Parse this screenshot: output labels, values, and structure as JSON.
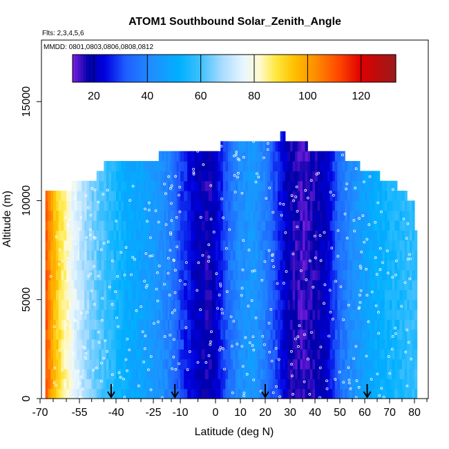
{
  "chart_data": {
    "type": "heatmap",
    "title": "ATOM1 Southbound Solar_Zenith_Angle",
    "subtitle_flights": "Flts: 2,3,4,5,6",
    "subtitle_dates": "MMDD: 0801,0803,0806,0808,0812",
    "xlabel": "Latitude (deg N)",
    "ylabel": "Altitude (m)",
    "xlim": [
      -70,
      85
    ],
    "ylim": [
      0,
      17500
    ],
    "x_ticks": [
      -70,
      -55,
      -40,
      -25,
      -10,
      0,
      10,
      20,
      30,
      40,
      50,
      60,
      70,
      80
    ],
    "x_tick_labels": [
      "-70",
      "-55",
      "-40",
      "-25",
      "-10",
      "0",
      "10",
      "20",
      "30",
      "40",
      "50",
      "60",
      "70",
      "80"
    ],
    "y_ticks": [
      0,
      5000,
      10000,
      15000
    ],
    "y_tick_labels": [
      "0",
      "5000",
      "10000",
      "15000"
    ],
    "colorbar": {
      "range": [
        12,
        133
      ],
      "ticks": [
        20,
        40,
        60,
        80,
        100,
        120
      ],
      "tick_labels": [
        "20",
        "40",
        "60",
        "80",
        "100",
        "120"
      ]
    },
    "arrow_latitudes": [
      -42,
      -13,
      20,
      61
    ],
    "latitude_bands": [
      {
        "lat": -68,
        "value": 112
      },
      {
        "lat": -65,
        "value": 97
      },
      {
        "lat": -62,
        "value": 88
      },
      {
        "lat": -58,
        "value": 78
      },
      {
        "lat": -54,
        "value": 70
      },
      {
        "lat": -50,
        "value": 65
      },
      {
        "lat": -45,
        "value": 60
      },
      {
        "lat": -40,
        "value": 55
      },
      {
        "lat": -35,
        "value": 50
      },
      {
        "lat": -30,
        "value": 48
      },
      {
        "lat": -25,
        "value": 45
      },
      {
        "lat": -20,
        "value": 42
      },
      {
        "lat": -15,
        "value": 38
      },
      {
        "lat": -10,
        "value": 30
      },
      {
        "lat": -6,
        "value": 22
      },
      {
        "lat": -2,
        "value": 17
      },
      {
        "lat": 2,
        "value": 26
      },
      {
        "lat": 6,
        "value": 36
      },
      {
        "lat": 10,
        "value": 42
      },
      {
        "lat": 15,
        "value": 45
      },
      {
        "lat": 20,
        "value": 38
      },
      {
        "lat": 25,
        "value": 28
      },
      {
        "lat": 30,
        "value": 18
      },
      {
        "lat": 35,
        "value": 15
      },
      {
        "lat": 40,
        "value": 17
      },
      {
        "lat": 45,
        "value": 22
      },
      {
        "lat": 50,
        "value": 35
      },
      {
        "lat": 55,
        "value": 42
      },
      {
        "lat": 60,
        "value": 47
      },
      {
        "lat": 65,
        "value": 51
      },
      {
        "lat": 70,
        "value": 54
      },
      {
        "lat": 75,
        "value": 56
      },
      {
        "lat": 80,
        "value": 58
      }
    ],
    "top_altitude_profile": [
      {
        "lat": -68,
        "alt": 10500
      },
      {
        "lat": -58,
        "alt": 11000
      },
      {
        "lat": -48,
        "alt": 11500
      },
      {
        "lat": -45,
        "alt": 12000
      },
      {
        "lat": -22,
        "alt": 12500
      },
      {
        "lat": 2,
        "alt": 13000
      },
      {
        "lat": 26,
        "alt": 13500
      },
      {
        "lat": 28,
        "alt": 13000
      },
      {
        "lat": 37,
        "alt": 12500
      },
      {
        "lat": 52,
        "alt": 12000
      },
      {
        "lat": 58,
        "alt": 11500
      },
      {
        "lat": 66,
        "alt": 11000
      },
      {
        "lat": 73,
        "alt": 10500
      },
      {
        "lat": 77,
        "alt": 10000
      },
      {
        "lat": 80,
        "alt": 8500
      },
      {
        "lat": 81,
        "alt": 5500
      }
    ]
  }
}
